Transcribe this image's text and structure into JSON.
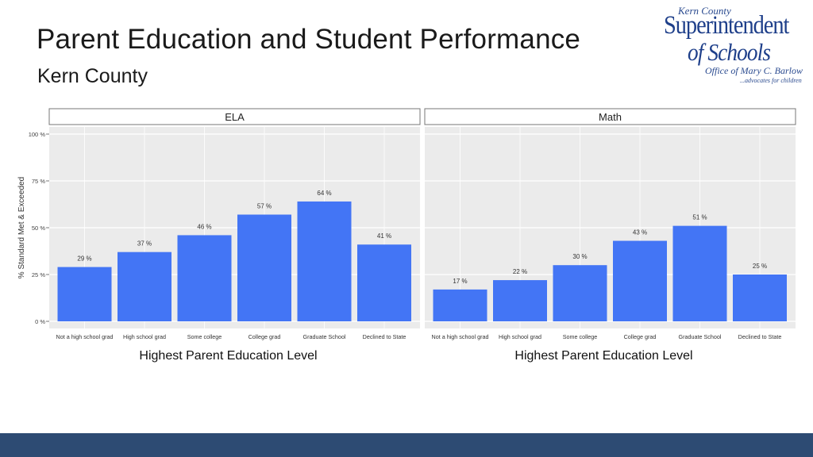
{
  "slide": {
    "title": "Parent Education and Student Performance",
    "subtitle": "Kern County"
  },
  "logo": {
    "line1": "Kern County",
    "line2": "Superintendent",
    "line3": "of Schools",
    "line4": "Office of Mary C. Barlow",
    "line5": "...advocates for children"
  },
  "colors": {
    "bar": "#4375f5",
    "panel_bg": "#ebebeb",
    "grid": "#ffffff",
    "footer": "#2d4b73"
  },
  "chart_data": {
    "type": "bar",
    "ylabel": "% Standard Met & Exceeded",
    "ylim": [
      0,
      100
    ],
    "yticks": [
      0,
      25,
      50,
      75,
      100
    ],
    "ytick_labels": [
      "0 %",
      "25 %",
      "50 %",
      "75 %",
      "100 %"
    ],
    "grid": true,
    "categories": [
      "Not a high school grad",
      "High school grad",
      "Some college",
      "College grad",
      "Graduate School",
      "Declined to State"
    ],
    "panels": [
      {
        "name": "ELA",
        "values": [
          29,
          37,
          46,
          57,
          64,
          41
        ],
        "labels": [
          "29 %",
          "37 %",
          "46 %",
          "57 %",
          "64 %",
          "41 %"
        ],
        "xlabel": "Highest Parent Education Level"
      },
      {
        "name": "Math",
        "values": [
          17,
          22,
          30,
          43,
          51,
          25
        ],
        "labels": [
          "17 %",
          "22 %",
          "30 %",
          "43 %",
          "51 %",
          "25 %"
        ],
        "xlabel": "Highest Parent Education Level"
      }
    ]
  }
}
